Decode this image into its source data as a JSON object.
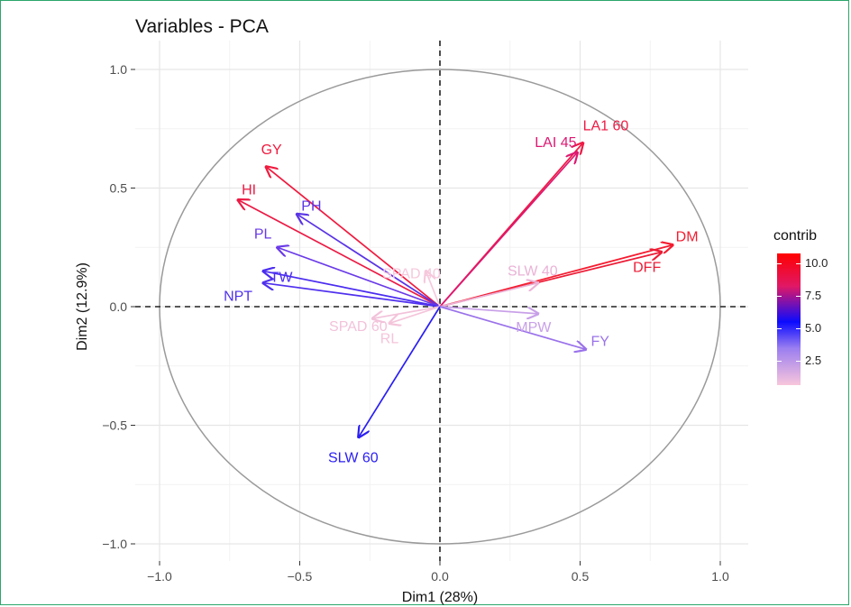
{
  "chart_data": {
    "type": "scatter",
    "subtype": "pca-variable-correlation-circle",
    "title": "Variables - PCA",
    "xlabel": "Dim1 (28%)",
    "ylabel": "Dim2 (12.9%)",
    "xlim": [
      -1.1,
      1.1
    ],
    "ylim": [
      -1.05,
      1.1
    ],
    "x_ticks": [
      -1.0,
      -0.5,
      0.0,
      0.5,
      1.0
    ],
    "x_tick_labels": [
      "−1.0",
      "−0.5",
      "0.0",
      "0.5",
      "1.0"
    ],
    "y_ticks": [
      1.0,
      0.5,
      0.0,
      -0.5,
      -1.0
    ],
    "y_tick_labels": [
      "1.0",
      "0.5",
      "0.0",
      "−0.5",
      "−1.0"
    ],
    "grid": true,
    "unit_circle": true,
    "legend": {
      "title": "contrib",
      "position": "right",
      "type": "colorbar",
      "ticks": [
        "10.0",
        "7.5",
        "5.0",
        "2.5"
      ],
      "tick_values": [
        10.0,
        7.5,
        5.0,
        2.5
      ],
      "range": [
        0.6,
        10.8
      ],
      "colors": [
        "#ff0000",
        "#e01866",
        "#0b0bff",
        "#9b7ef0",
        "#f8c6dc"
      ]
    },
    "vectors": [
      {
        "name": "LA1 60",
        "x": 0.51,
        "y": 0.69,
        "contrib": 10.3,
        "color": "#ee1a45"
      },
      {
        "name": "LAI 45",
        "x": 0.49,
        "y": 0.65,
        "contrib": 9.5,
        "color": "#dd1872"
      },
      {
        "name": "DM",
        "x": 0.83,
        "y": 0.26,
        "contrib": 10.5,
        "color": "#f41c30"
      },
      {
        "name": "DFF",
        "x": 0.79,
        "y": 0.23,
        "contrib": 9.8,
        "color": "#ec1c36"
      },
      {
        "name": "GY",
        "x": -0.62,
        "y": 0.59,
        "contrib": 10.0,
        "color": "#f01a3e"
      },
      {
        "name": "HI",
        "x": -0.72,
        "y": 0.45,
        "contrib": 9.8,
        "color": "#ec1a44"
      },
      {
        "name": "PH",
        "x": -0.51,
        "y": 0.39,
        "contrib": 6.0,
        "color": "#5a34e6"
      },
      {
        "name": "PL",
        "x": -0.58,
        "y": 0.25,
        "contrib": 5.8,
        "color": "#6a3ae8"
      },
      {
        "name": "TW",
        "x": -0.63,
        "y": 0.15,
        "contrib": 5.6,
        "color": "#4a2cf0"
      },
      {
        "name": "NPT",
        "x": -0.63,
        "y": 0.1,
        "contrib": 5.6,
        "color": "#5030ee"
      },
      {
        "name": "SLW 40",
        "x": 0.35,
        "y": 0.1,
        "contrib": 1.8,
        "color": "#eab2d6"
      },
      {
        "name": "SPAD 40",
        "x": -0.05,
        "y": 0.15,
        "contrib": 0.9,
        "color": "#f6c8dc"
      },
      {
        "name": "SPAD 60",
        "x": -0.24,
        "y": -0.05,
        "contrib": 1.2,
        "color": "#f2c2da"
      },
      {
        "name": "RL",
        "x": -0.18,
        "y": -0.07,
        "contrib": 1.0,
        "color": "#f4c4da"
      },
      {
        "name": "MPW",
        "x": 0.35,
        "y": -0.03,
        "contrib": 3.5,
        "color": "#c8a0e8"
      },
      {
        "name": "FY",
        "x": 0.52,
        "y": -0.18,
        "contrib": 4.5,
        "color": "#9a72ea"
      },
      {
        "name": "SLW 60",
        "x": -0.29,
        "y": -0.55,
        "contrib": 6.8,
        "color": "#2a1ef4"
      }
    ]
  }
}
